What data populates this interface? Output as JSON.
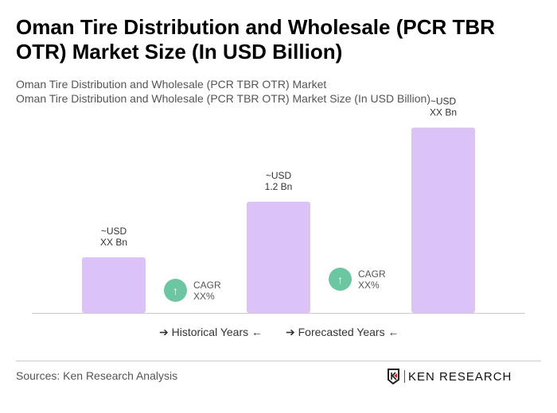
{
  "title": "Oman Tire Distribution and Wholesale (PCR TBR OTR) Market Size (In USD Billion)",
  "subtitle1": "Oman Tire Distribution and Wholesale (PCR TBR OTR) Market",
  "subtitle2": "Oman Tire Distribution and Wholesale (PCR TBR OTR) Market Size (In USD Billion)",
  "chart_data": {
    "type": "bar",
    "values": [
      0.6,
      1.2,
      2.0
    ],
    "data_labels": [
      [
        "~USD",
        "XX Bn"
      ],
      [
        "~USD",
        "1.2 Bn"
      ],
      [
        "~USD",
        "XX Bn"
      ]
    ],
    "bar_color": "#dcc3f7",
    "cagr": [
      {
        "label": "CAGR",
        "value": "XX%"
      },
      {
        "label": "CAGR",
        "value": "XX%"
      }
    ],
    "cagr_color": "#6cc6a1",
    "legend": [
      "Historical Years",
      "Forecasted Years"
    ]
  },
  "footer": {
    "source": "Sources: Ken Research Analysis",
    "logo": "KEN RESEARCH"
  }
}
